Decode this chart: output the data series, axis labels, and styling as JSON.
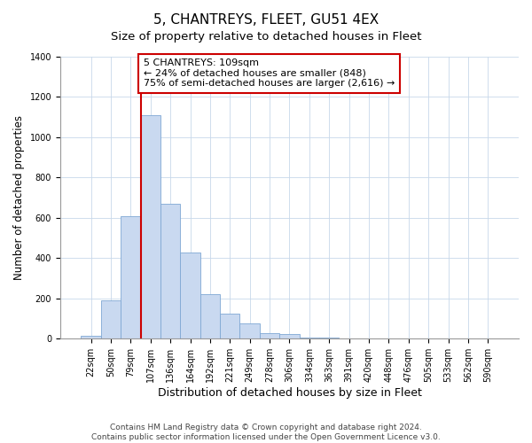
{
  "title": "5, CHANTREYS, FLEET, GU51 4EX",
  "subtitle": "Size of property relative to detached houses in Fleet",
  "xlabel": "Distribution of detached houses by size in Fleet",
  "ylabel": "Number of detached properties",
  "bar_labels": [
    "22sqm",
    "50sqm",
    "79sqm",
    "107sqm",
    "136sqm",
    "164sqm",
    "192sqm",
    "221sqm",
    "249sqm",
    "278sqm",
    "306sqm",
    "334sqm",
    "363sqm",
    "391sqm",
    "420sqm",
    "448sqm",
    "476sqm",
    "505sqm",
    "533sqm",
    "562sqm",
    "590sqm"
  ],
  "bar_values": [
    15,
    190,
    610,
    1110,
    670,
    430,
    220,
    125,
    75,
    30,
    25,
    5,
    5,
    0,
    0,
    0,
    0,
    0,
    0,
    0,
    0
  ],
  "bar_color": "#c9d9f0",
  "bar_edge_color": "#7fa8d4",
  "vline_x_index": 3,
  "vline_color": "#cc0000",
  "annotation_text": "5 CHANTREYS: 109sqm\n← 24% of detached houses are smaller (848)\n75% of semi-detached houses are larger (2,616) →",
  "annotation_box_color": "#ffffff",
  "annotation_box_edge": "#cc0000",
  "ylim": [
    0,
    1400
  ],
  "yticks": [
    0,
    200,
    400,
    600,
    800,
    1000,
    1200,
    1400
  ],
  "footer": "Contains HM Land Registry data © Crown copyright and database right 2024.\nContains public sector information licensed under the Open Government Licence v3.0.",
  "title_fontsize": 11,
  "subtitle_fontsize": 9.5,
  "xlabel_fontsize": 9,
  "ylabel_fontsize": 8.5,
  "tick_fontsize": 7,
  "annotation_fontsize": 8,
  "footer_fontsize": 6.5
}
